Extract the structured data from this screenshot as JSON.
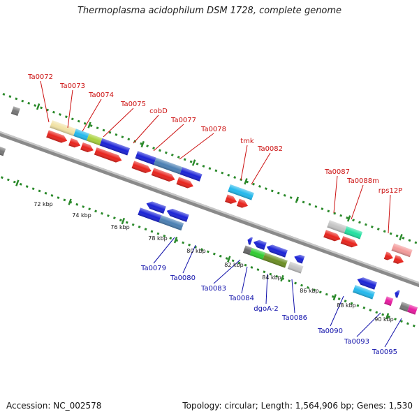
{
  "title": "Thermoplasma acidophilum DSM 1728, complete genome",
  "footer": {
    "accession": "Accession: NC_002578",
    "info": "Topology: circular; Length: 1,564,906 bp; Genes: 1,530"
  },
  "colors": {
    "forward_cds": "#e8231c",
    "reverse_cds": "#1a22d6",
    "backbone": "#8a8a8a",
    "tick": "#2b8a2b",
    "top_label": "#cc1111",
    "bottom_label": "#1111aa"
  },
  "scale_labels": [
    "72 kbp",
    "74 kbp",
    "76 kbp",
    "78 kbp",
    "80 kbp",
    "82 kbp",
    "84 kbp",
    "86 kbp",
    "88 kbp",
    "90 kbp"
  ],
  "top_genes": [
    "Ta0072",
    "Ta0073",
    "Ta0074",
    "Ta0075",
    "cobD",
    "Ta0077",
    "Ta0078",
    "tmk",
    "Ta0082",
    "Ta0087",
    "Ta0088m",
    "rps12P"
  ],
  "bottom_genes": [
    "Ta0079",
    "Ta0080",
    "Ta0083",
    "Ta0084",
    "dgoA-2",
    "Ta0086",
    "Ta0090",
    "Ta0093",
    "Ta0095"
  ]
}
